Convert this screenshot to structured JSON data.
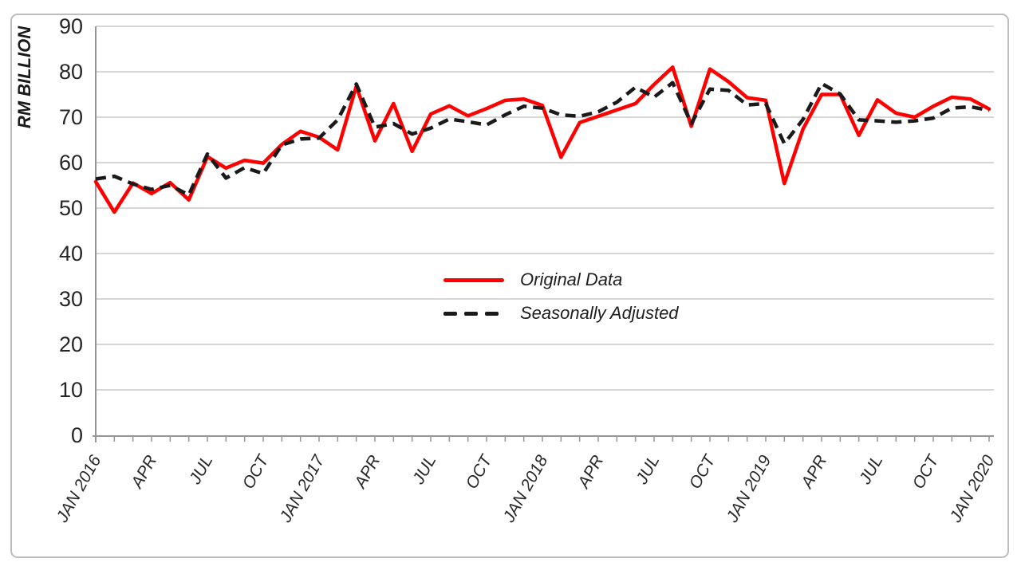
{
  "colors": {
    "original_line": "#fe0000",
    "adjusted_line": "#1a1a1a",
    "grid": "#c9c9c9",
    "axis": "#969696",
    "text": "#262626",
    "frame_border": "#bdbdbd",
    "background": "#ffffff"
  },
  "axis": {
    "y_title": "RM BILLION",
    "y_ticks": [
      0,
      10,
      20,
      30,
      40,
      50,
      60,
      70,
      80,
      90
    ],
    "x_ticks": [
      {
        "index": 0,
        "label": "JAN 2016"
      },
      {
        "index": 3,
        "label": "APR"
      },
      {
        "index": 6,
        "label": "JUL"
      },
      {
        "index": 9,
        "label": "OCT"
      },
      {
        "index": 12,
        "label": "JAN 2017"
      },
      {
        "index": 15,
        "label": "APR"
      },
      {
        "index": 18,
        "label": "JUL"
      },
      {
        "index": 21,
        "label": "OCT"
      },
      {
        "index": 24,
        "label": "JAN 2018"
      },
      {
        "index": 27,
        "label": "APR"
      },
      {
        "index": 30,
        "label": "JUL"
      },
      {
        "index": 33,
        "label": "OCT"
      },
      {
        "index": 36,
        "label": "JAN 2019"
      },
      {
        "index": 39,
        "label": "APR"
      },
      {
        "index": 42,
        "label": "JUL"
      },
      {
        "index": 45,
        "label": "OCT"
      },
      {
        "index": 48,
        "label": "JAN 2020"
      }
    ]
  },
  "legend": {
    "original_label": "Original Data",
    "adjusted_label": "Seasonally Adjusted"
  },
  "chart_data": {
    "type": "line",
    "title": "",
    "xlabel": "",
    "ylabel": "RM BILLION",
    "ylim": [
      0,
      90
    ],
    "ytick_step": 10,
    "grid": true,
    "legend_position": "center",
    "x": [
      "JAN 2016",
      "FEB 2016",
      "MAR 2016",
      "APR 2016",
      "MAY 2016",
      "JUN 2016",
      "JUL 2016",
      "AUG 2016",
      "SEP 2016",
      "OCT 2016",
      "NOV 2016",
      "DEC 2016",
      "JAN 2017",
      "FEB 2017",
      "MAR 2017",
      "APR 2017",
      "MAY 2017",
      "JUN 2017",
      "JUL 2017",
      "AUG 2017",
      "SEP 2017",
      "OCT 2017",
      "NOV 2017",
      "DEC 2017",
      "JAN 2018",
      "FEB 2018",
      "MAR 2018",
      "APR 2018",
      "MAY 2018",
      "JUN 2018",
      "JUL 2018",
      "AUG 2018",
      "SEP 2018",
      "OCT 2018",
      "NOV 2018",
      "DEC 2018",
      "JAN 2019",
      "FEB 2019",
      "MAR 2019",
      "APR 2019",
      "MAY 2019",
      "JUN 2019",
      "JUL 2019",
      "AUG 2019",
      "SEP 2019",
      "OCT 2019",
      "NOV 2019",
      "DEC 2019",
      "JAN 2020"
    ],
    "series": [
      {
        "name": "Original Data",
        "style": "solid",
        "color": "#fe0000",
        "values": [
          55.8,
          49.1,
          55.5,
          53.2,
          55.6,
          51.8,
          61.3,
          58.8,
          60.5,
          59.9,
          64.0,
          66.9,
          65.6,
          62.8,
          76.8,
          64.8,
          73.0,
          62.5,
          70.7,
          72.5,
          70.3,
          71.9,
          73.7,
          74.0,
          72.6,
          61.2,
          68.8,
          70.2,
          71.6,
          73.0,
          77.2,
          81.0,
          68.0,
          80.6,
          77.8,
          74.3,
          73.7,
          55.4,
          67.4,
          75.0,
          75.0,
          66.0,
          73.8,
          70.9,
          70.0,
          72.4,
          74.4,
          74.0,
          71.8
        ]
      },
      {
        "name": "Seasonally Adjusted",
        "style": "dashed",
        "color": "#1a1a1a",
        "values": [
          56.4,
          57.0,
          55.3,
          54.1,
          55.0,
          52.9,
          61.9,
          56.6,
          58.9,
          57.6,
          63.9,
          65.2,
          65.4,
          69.4,
          77.3,
          67.8,
          68.6,
          66.3,
          67.6,
          69.6,
          69.0,
          68.3,
          70.5,
          72.4,
          72.0,
          70.5,
          70.2,
          71.2,
          73.3,
          76.6,
          74.4,
          77.6,
          68.6,
          76.2,
          75.9,
          72.7,
          73.0,
          64.2,
          69.5,
          77.4,
          75.1,
          69.4,
          69.2,
          68.9,
          69.2,
          69.8,
          72.0,
          72.3,
          71.5
        ]
      }
    ]
  }
}
